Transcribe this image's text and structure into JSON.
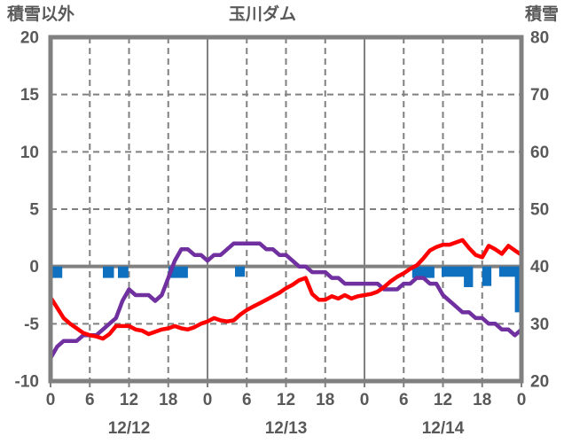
{
  "header": {
    "left_axis_label": "積雪以外",
    "title": "玉川ダム",
    "right_axis_label": "積雪"
  },
  "chart_data": {
    "type": "line",
    "title": "玉川ダム",
    "legend": "none",
    "grid": "dashed horizontal every 5 left-units; dashed vertical every 6h; solid vertical at day boundaries; thick solid zero line",
    "colors": {
      "red_line": "#ff0000",
      "purple_line": "#7030a0",
      "bars": "#0f70c0",
      "grid": "#808080",
      "border": "#808080",
      "text": "#595959"
    },
    "left_axis": {
      "label": "積雪以外",
      "min": -10,
      "max": 20,
      "ticks": [
        20,
        15,
        10,
        5,
        0,
        -5,
        -10
      ],
      "dashed_gridline_values": [
        15,
        10,
        5,
        -5
      ],
      "zero_line_value": 0
    },
    "right_axis": {
      "label": "積雪",
      "min": 20,
      "max": 80,
      "ticks": [
        80,
        70,
        60,
        50,
        40,
        30,
        20
      ]
    },
    "x_axis": {
      "min_hour": 0,
      "max_hour": 72,
      "tick_step_hours": 6,
      "tick_labels": [
        "0",
        "6",
        "12",
        "18",
        "0",
        "6",
        "12",
        "18",
        "0",
        "6",
        "12",
        "18",
        "0"
      ],
      "day_labels": [
        {
          "label": "12/12",
          "center_hour": 12
        },
        {
          "label": "12/13",
          "center_hour": 36
        },
        {
          "label": "12/14",
          "center_hour": 60
        }
      ],
      "dashed_gridlines_hours": [
        6,
        12,
        18,
        30,
        36,
        42,
        54,
        60,
        66
      ],
      "solid_gridlines_hours": [
        24,
        48
      ]
    },
    "series": [
      {
        "name": "purple-line",
        "axis": "right",
        "color_key": "purple_line",
        "x_start_hour": 0,
        "x_step_hours": 1,
        "values": [
          24,
          26,
          27,
          27,
          27,
          28,
          28,
          28,
          29,
          30,
          31,
          34,
          36,
          35,
          35,
          35,
          34,
          35,
          38,
          41,
          43,
          43,
          42,
          42,
          41,
          42,
          42,
          43,
          44,
          44,
          44,
          44,
          44,
          43,
          43,
          42,
          42,
          41,
          40,
          40,
          39,
          39,
          39,
          38,
          38,
          37,
          37,
          37,
          37,
          37,
          37,
          36,
          36,
          36,
          37,
          37,
          38,
          38,
          37,
          37,
          35,
          34,
          33,
          32,
          32,
          31,
          31,
          30,
          30,
          29,
          29,
          28,
          29
        ]
      },
      {
        "name": "red-line",
        "axis": "left",
        "color_key": "red_line",
        "x_start_hour": 0,
        "x_step_hours": 1,
        "values": [
          -2.7,
          -3.6,
          -4.5,
          -5.0,
          -5.4,
          -5.8,
          -6.0,
          -6.1,
          -6.3,
          -5.9,
          -5.2,
          -5.2,
          -5.2,
          -5.5,
          -5.6,
          -5.9,
          -5.7,
          -5.5,
          -5.4,
          -5.2,
          -5.4,
          -5.5,
          -5.3,
          -5.0,
          -4.8,
          -4.5,
          -4.7,
          -4.8,
          -4.7,
          -4.2,
          -3.8,
          -3.5,
          -3.2,
          -2.9,
          -2.6,
          -2.3,
          -1.9,
          -1.6,
          -1.2,
          -1.0,
          -2.4,
          -2.9,
          -2.9,
          -2.6,
          -2.8,
          -2.5,
          -2.8,
          -2.6,
          -2.5,
          -2.4,
          -2.2,
          -1.8,
          -1.3,
          -0.9,
          -0.6,
          -0.2,
          0.1,
          0.7,
          1.4,
          1.7,
          1.9,
          1.9,
          2.1,
          2.3,
          1.6,
          1.0,
          0.8,
          1.8,
          1.5,
          1.1,
          1.8,
          1.4,
          1.0
        ]
      }
    ],
    "bars": {
      "name": "blue-bars",
      "axis": "left",
      "color_key": "bars",
      "items": [
        {
          "start_hour": 0.1,
          "width_hours": 1.7,
          "value": -1.0
        },
        {
          "start_hour": 8.0,
          "width_hours": 1.7,
          "value": -1.0
        },
        {
          "start_hour": 10.3,
          "width_hours": 1.6,
          "value": -1.0
        },
        {
          "start_hour": 18.0,
          "width_hours": 3.0,
          "value": -1.0
        },
        {
          "start_hour": 28.2,
          "width_hours": 1.5,
          "value": -0.9
        },
        {
          "start_hour": 55.3,
          "width_hours": 3.4,
          "value": -1.0
        },
        {
          "start_hour": 59.8,
          "width_hours": 4.6,
          "value": -0.9
        },
        {
          "start_hour": 63.2,
          "width_hours": 1.4,
          "value": -1.8
        },
        {
          "start_hour": 66.0,
          "width_hours": 1.4,
          "value": -1.7
        },
        {
          "start_hour": 68.6,
          "width_hours": 3.4,
          "value": -0.9
        },
        {
          "start_hour": 71.0,
          "width_hours": 1.2,
          "value": -4.0
        }
      ]
    }
  }
}
